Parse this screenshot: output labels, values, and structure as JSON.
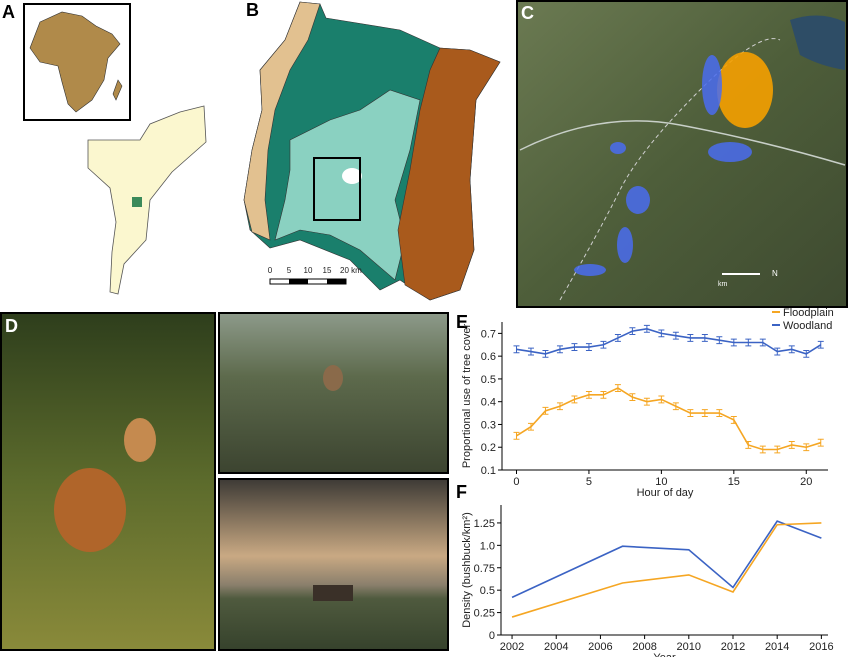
{
  "panels": {
    "labels": [
      "A",
      "B",
      "C",
      "D",
      "E",
      "F"
    ]
  },
  "map_b": {
    "scale_labels": [
      "0",
      "5",
      "10",
      "15",
      "20 km"
    ]
  },
  "map_c": {
    "scale_label": "km",
    "north": "N"
  },
  "chart_data": [
    {
      "type": "line",
      "x_label": "Hour of day",
      "y_label": "Proportional use of tree cover",
      "x": [
        0,
        1,
        2,
        3,
        4,
        5,
        6,
        7,
        8,
        9,
        10,
        11,
        12,
        13,
        14,
        15,
        16,
        17,
        18,
        19,
        20,
        21
      ],
      "series": [
        {
          "name": "Floodplain",
          "color": "#f5a623",
          "values": [
            0.25,
            0.29,
            0.36,
            0.38,
            0.41,
            0.43,
            0.43,
            0.46,
            0.42,
            0.4,
            0.41,
            0.38,
            0.35,
            0.35,
            0.35,
            0.32,
            0.21,
            0.19,
            0.19,
            0.21,
            0.2,
            0.22
          ],
          "errors": [
            0.015,
            0.015,
            0.015,
            0.015,
            0.015,
            0.015,
            0.015,
            0.015,
            0.015,
            0.015,
            0.015,
            0.015,
            0.015,
            0.015,
            0.015,
            0.015,
            0.015,
            0.015,
            0.015,
            0.015,
            0.015,
            0.015
          ]
        },
        {
          "name": "Woodland",
          "color": "#3b63c4",
          "values": [
            0.63,
            0.62,
            0.61,
            0.63,
            0.64,
            0.64,
            0.65,
            0.68,
            0.71,
            0.72,
            0.7,
            0.69,
            0.68,
            0.68,
            0.67,
            0.66,
            0.66,
            0.66,
            0.62,
            0.63,
            0.61,
            0.65
          ],
          "errors": [
            0.015,
            0.015,
            0.015,
            0.015,
            0.015,
            0.015,
            0.015,
            0.015,
            0.015,
            0.015,
            0.015,
            0.015,
            0.015,
            0.015,
            0.015,
            0.015,
            0.015,
            0.015,
            0.015,
            0.015,
            0.015,
            0.015
          ]
        }
      ],
      "xlim": [
        -1,
        21.5
      ],
      "ylim": [
        0.1,
        0.75
      ],
      "xticks": [
        0,
        5,
        10,
        15,
        20
      ],
      "yticks": [
        0.1,
        0.2,
        0.3,
        0.4,
        0.5,
        0.6,
        0.7
      ],
      "legend": "upper right",
      "grid": false
    },
    {
      "type": "line",
      "x_label": "Year",
      "y_label": "Density (bushbuck/km²)",
      "x": [
        2002,
        2007,
        2010,
        2012,
        2014,
        2016
      ],
      "series": [
        {
          "color": "#3b63c4",
          "values": [
            0.42,
            0.99,
            0.95,
            0.53,
            1.27,
            1.08
          ]
        },
        {
          "color": "#f5a623",
          "values": [
            0.2,
            0.58,
            0.67,
            0.48,
            1.23,
            1.25
          ]
        }
      ],
      "xlim": [
        2001.5,
        2016.3
      ],
      "ylim": [
        0,
        1.45
      ],
      "xticks": [
        2002,
        2004,
        2006,
        2008,
        2010,
        2012,
        2014,
        2016
      ],
      "yticks": [
        0,
        0.25,
        0.5,
        0.75,
        {
          "value": 1,
          "label": "1.0"
        },
        1.25
      ],
      "grid": false
    }
  ]
}
